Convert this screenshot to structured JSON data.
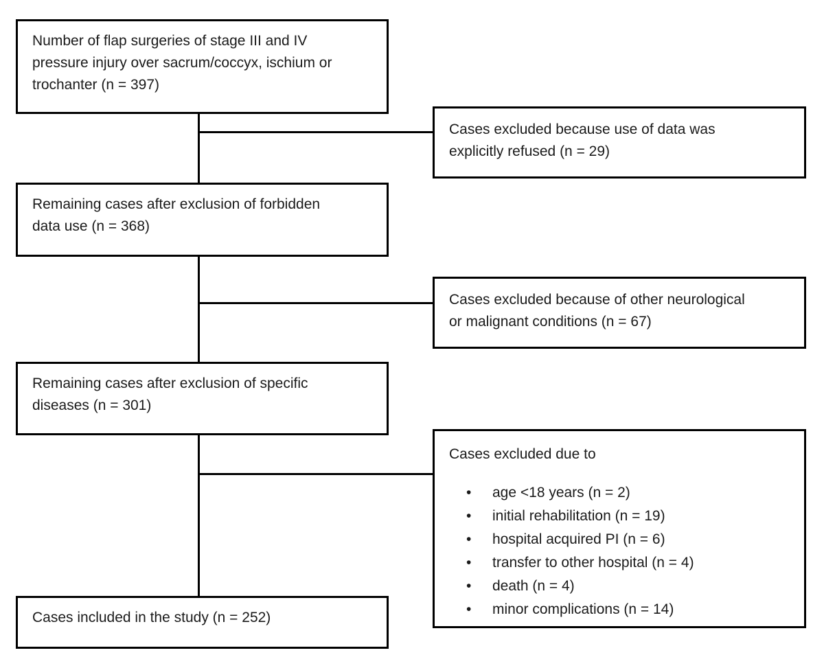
{
  "colors": {
    "background": "#ffffff",
    "box_border": "#000000",
    "text": "#1a1a1a"
  },
  "flowchart": {
    "boxes": {
      "surgeries": {
        "text": "Number of flap surgeries of stage III and IV\npressure injury over sacrum/coccyx, ischium or\ntrochanter (n = 397)"
      },
      "excluded_refused": {
        "text": "Cases excluded because use of data was\nexplicitly refused (n = 29)"
      },
      "remaining_forbidden": {
        "text": "Remaining cases after exclusion of forbidden\ndata use (n = 368)"
      },
      "excluded_neuro": {
        "text": "Cases excluded because of other neurological\nor malignant conditions (n = 67)"
      },
      "remaining_diseases": {
        "text": "Remaining cases after exclusion of specific\ndiseases (n = 301)"
      },
      "excluded_due_to": {
        "heading": "Cases excluded due to",
        "items": [
          "age <18 years (n = 2)",
          "initial rehabilitation (n = 19)",
          "hospital acquired PI (n = 6)",
          "transfer to other hospital (n = 4)",
          "death (n = 4)",
          "minor complications (n = 14)"
        ]
      },
      "included": {
        "text": "Cases included in the study (n = 252)"
      }
    }
  }
}
